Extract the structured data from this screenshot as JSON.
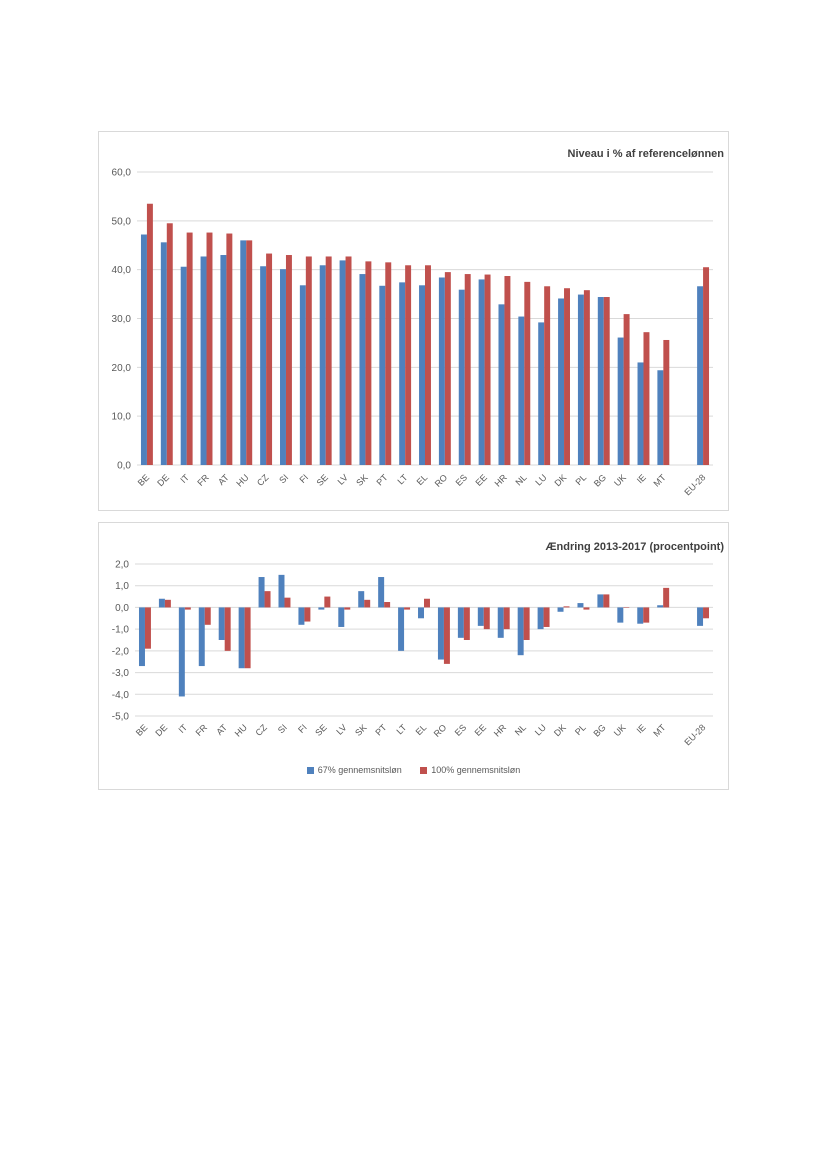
{
  "colors": {
    "series1": "#4f81bd",
    "series2": "#c0504d",
    "grid": "#d9d9d9",
    "axis_text": "#595959"
  },
  "legend": {
    "series1": "67% gennemsnitsløn",
    "series2": "100% gennemsnitsløn"
  },
  "chart_data": [
    {
      "type": "bar",
      "title": "Niveau i % af referencelønnen",
      "xlabel": "",
      "ylabel": "",
      "ylim": [
        0,
        60
      ],
      "yticks": [
        "0,0",
        "10,0",
        "20,0",
        "30,0",
        "40,0",
        "50,0",
        "60,0"
      ],
      "grid": true,
      "categories": [
        "BE",
        "DE",
        "IT",
        "FR",
        "AT",
        "HU",
        "CZ",
        "SI",
        "FI",
        "SE",
        "LV",
        "SK",
        "PT",
        "LT",
        "EL",
        "RO",
        "ES",
        "EE",
        "HR",
        "NL",
        "LU",
        "DK",
        "PL",
        "BG",
        "UK",
        "IE",
        "MT",
        "",
        "EU-28"
      ],
      "series": [
        {
          "name": "67% gennemsnitsløn",
          "values": [
            47.2,
            45.6,
            40.6,
            42.7,
            43.0,
            46.0,
            40.7,
            40.1,
            36.8,
            40.9,
            41.9,
            39.1,
            36.7,
            37.4,
            36.8,
            38.4,
            35.9,
            38.0,
            32.9,
            30.4,
            29.2,
            34.1,
            34.9,
            34.4,
            26.1,
            21.0,
            19.4,
            null,
            36.6
          ]
        },
        {
          "name": "100% gennemsnitsløn",
          "values": [
            53.5,
            49.5,
            47.6,
            47.6,
            47.4,
            46.0,
            43.3,
            43.0,
            42.7,
            42.7,
            42.7,
            41.7,
            41.5,
            40.9,
            40.9,
            39.5,
            39.1,
            39.0,
            38.7,
            37.5,
            36.6,
            36.2,
            35.8,
            34.4,
            30.9,
            27.2,
            25.6,
            null,
            40.5
          ]
        }
      ]
    },
    {
      "type": "bar",
      "title": "Ændring 2013-2017 (procentpoint)",
      "xlabel": "",
      "ylabel": "",
      "ylim": [
        -5,
        2
      ],
      "yticks": [
        "-5,0",
        "-4,0",
        "-3,0",
        "-2,0",
        "-1,0",
        "0,0",
        "1,0",
        "2,0"
      ],
      "grid": true,
      "legend": "bottom",
      "categories": [
        "BE",
        "DE",
        "IT",
        "FR",
        "AT",
        "HU",
        "CZ",
        "SI",
        "FI",
        "SE",
        "LV",
        "SK",
        "PT",
        "LT",
        "EL",
        "RO",
        "ES",
        "EE",
        "HR",
        "NL",
        "LU",
        "DK",
        "PL",
        "BG",
        "UK",
        "IE",
        "MT",
        "",
        "EU-28"
      ],
      "series": [
        {
          "name": "67% gennemsnitsløn",
          "values": [
            -2.7,
            0.4,
            -4.1,
            -2.7,
            -1.5,
            -2.8,
            1.4,
            1.5,
            -0.8,
            -0.1,
            -0.9,
            0.75,
            1.4,
            -2.0,
            -0.5,
            -2.4,
            -1.4,
            -0.85,
            -1.4,
            -2.2,
            -1.0,
            -0.2,
            0.2,
            0.6,
            -0.7,
            -0.75,
            0.1,
            null,
            -0.85
          ]
        },
        {
          "name": "100% gennemsnitsløn",
          "values": [
            -1.9,
            0.35,
            -0.1,
            -0.8,
            -2.0,
            -2.8,
            0.75,
            0.45,
            -0.65,
            0.5,
            -0.1,
            0.35,
            0.25,
            -0.1,
            0.4,
            -2.6,
            -1.5,
            -1.0,
            -1.0,
            -1.5,
            -0.9,
            0.05,
            -0.1,
            0.6,
            0.0,
            -0.7,
            0.9,
            null,
            -0.5
          ]
        }
      ]
    }
  ]
}
